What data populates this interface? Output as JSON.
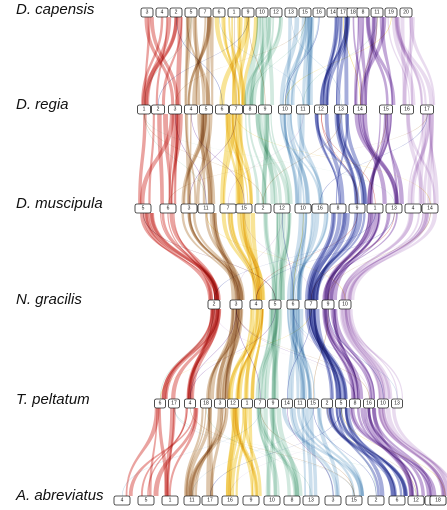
{
  "chart_data": {
    "type": "synteny",
    "species": [
      {
        "name": "D. capensis",
        "chromosomes": [
          "3",
          "4",
          "2",
          "5",
          "7",
          "6",
          "1",
          "9",
          "10",
          "12",
          "13",
          "15",
          "16",
          "14",
          "17",
          "18",
          "8",
          "11",
          "19",
          "20"
        ]
      },
      {
        "name": "D. regia",
        "chromosomes": [
          "1",
          "2",
          "3",
          "4",
          "5",
          "6",
          "7",
          "8",
          "9",
          "10",
          "11",
          "12",
          "13",
          "14",
          "15",
          "16",
          "17"
        ]
      },
      {
        "name": "D. muscipula",
        "chromosomes": [
          "5",
          "6",
          "3",
          "11",
          "7",
          "15",
          "2",
          "12",
          "10",
          "16",
          "8",
          "9",
          "1",
          "13",
          "4",
          "14"
        ]
      },
      {
        "name": "N. gracilis",
        "chromosomes": [
          "2",
          "3",
          "4",
          "5",
          "6",
          "7",
          "9",
          "10"
        ]
      },
      {
        "name": "T. peltatum",
        "chromosomes": [
          "6",
          "17",
          "4",
          "18",
          "3",
          "12",
          "1",
          "7",
          "9",
          "14",
          "11",
          "15",
          "2",
          "5",
          "8",
          "16",
          "10",
          "13"
        ]
      },
      {
        "name": "A. abreviatus",
        "chromosomes": [
          "4",
          "5",
          "1",
          "11",
          "17",
          "16",
          "9",
          "10",
          "8",
          "13",
          "3",
          "15",
          "2",
          "6",
          "12",
          "14",
          "7",
          "18"
        ]
      }
    ],
    "ancestral_colors": [
      "#d0342c",
      "#b5834a",
      "#f0c419",
      "#9ccfb8",
      "#8fb8d8",
      "#3a49b0",
      "#7a3fa8",
      "#cfb0dc"
    ]
  }
}
